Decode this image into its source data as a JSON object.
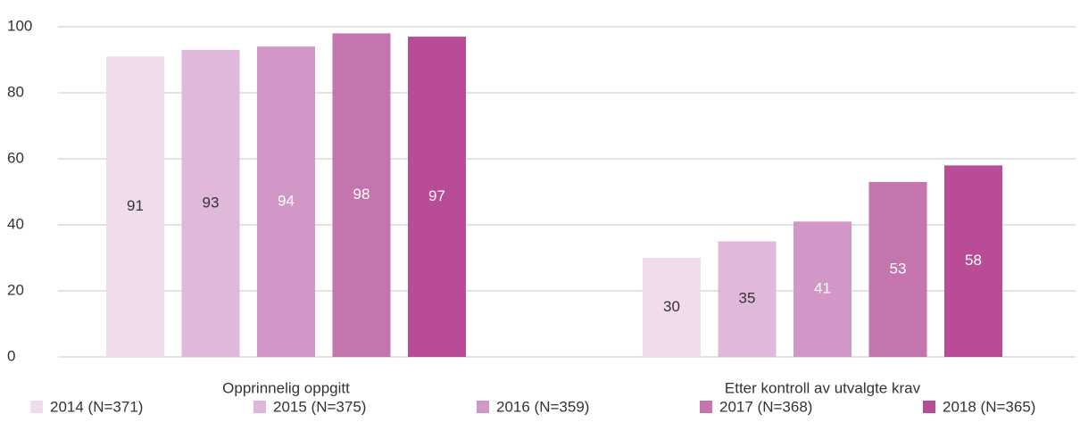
{
  "chart_data": {
    "type": "bar",
    "categories": [
      "Opprinnelig oppgitt",
      "Etter kontroll av utvalgte krav"
    ],
    "series": [
      {
        "name": "2014 (N=371)",
        "color": "#f0dcec",
        "values": [
          91,
          30
        ]
      },
      {
        "name": "2015 (N=375)",
        "color": "#e0b9da",
        "values": [
          93,
          35
        ]
      },
      {
        "name": "2016 (N=359)",
        "color": "#d197c6",
        "values": [
          94,
          41
        ]
      },
      {
        "name": "2017 (N=368)",
        "color": "#c475ae",
        "values": [
          98,
          53
        ]
      },
      {
        "name": "2018 (N=365)",
        "color": "#b84c96",
        "values": [
          97,
          58
        ]
      }
    ],
    "ylim": [
      0,
      100
    ],
    "yticks": [
      0,
      20,
      40,
      60,
      80,
      100
    ],
    "grid": true,
    "legend": "bottom"
  }
}
